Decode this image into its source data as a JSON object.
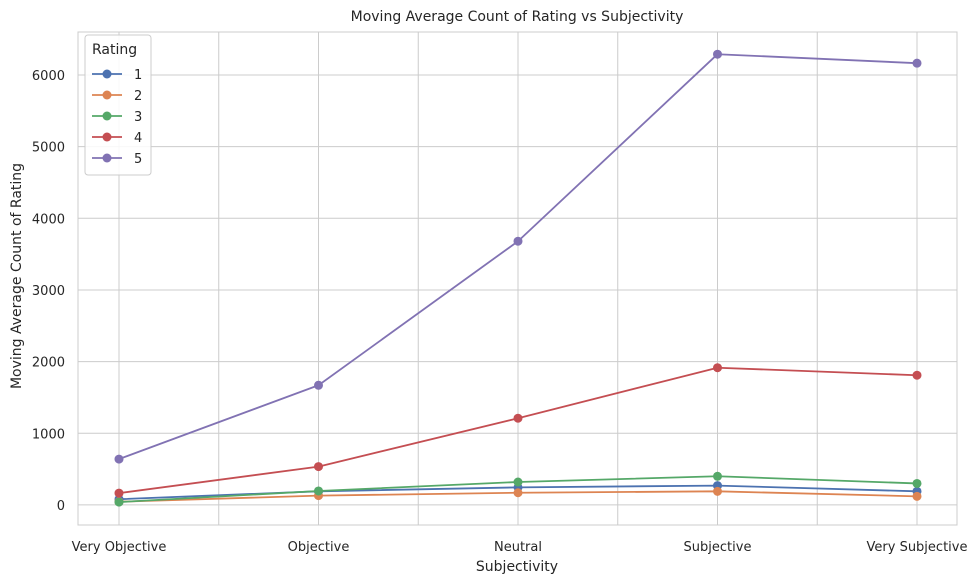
{
  "chart_data": {
    "type": "line",
    "title": "Moving Average Count of Rating vs Subjectivity",
    "xlabel": "Subjectivity",
    "ylabel": "Moving Average Count of Rating",
    "categories": [
      "Very Objective",
      "Objective",
      "Neutral",
      "Subjective",
      "Very Subjective"
    ],
    "ylim": [
      -280,
      6600
    ],
    "yticks": [
      0,
      1000,
      2000,
      3000,
      4000,
      5000,
      6000
    ],
    "grid": true,
    "legend": {
      "title": "Rating",
      "position": "top-left"
    },
    "series": [
      {
        "name": "1",
        "color": "#4c72b0",
        "values": [
          80,
          190,
          245,
          270,
          190
        ]
      },
      {
        "name": "2",
        "color": "#dd8452",
        "values": [
          45,
          130,
          170,
          190,
          120
        ]
      },
      {
        "name": "3",
        "color": "#55a868",
        "values": [
          40,
          195,
          320,
          400,
          300
        ]
      },
      {
        "name": "4",
        "color": "#c44e52",
        "values": [
          165,
          535,
          1210,
          1915,
          1810
        ]
      },
      {
        "name": "5",
        "color": "#8172b3",
        "values": [
          640,
          1670,
          3680,
          6290,
          6165
        ]
      }
    ]
  }
}
